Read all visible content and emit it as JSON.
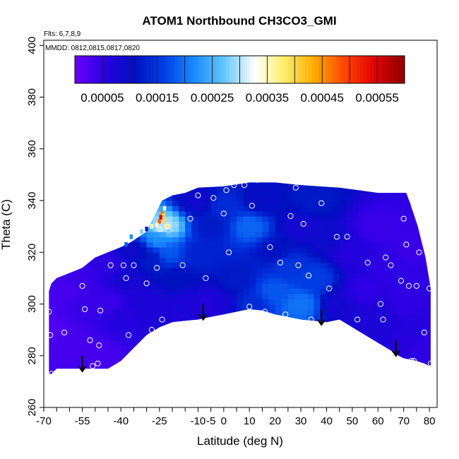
{
  "chart_data": {
    "type": "heatmap",
    "title": "ATOM1 Northbound CH3CO3_GMI",
    "subtitle_flights": "Flts: 6,7,8,9",
    "subtitle_dates": "MMDD: 0812,0815,0817,0820",
    "xlabel": "Latitude (deg N)",
    "ylabel": "Theta (C)",
    "xlim": [
      -70,
      83
    ],
    "ylim": [
      260,
      402
    ],
    "x_ticks": [
      -70,
      -65,
      -60,
      -55,
      -50,
      -45,
      -40,
      -35,
      -30,
      -25,
      -20,
      -15,
      -10,
      -5,
      0,
      5,
      10,
      15,
      20,
      25,
      30,
      35,
      40,
      45,
      50,
      55,
      60,
      65,
      70,
      75,
      80
    ],
    "x_tick_labels": [
      "-70",
      "",
      "",
      "-55",
      "",
      "",
      "-40",
      "",
      "",
      "-25",
      "",
      "",
      "-10",
      "-5",
      "0",
      "",
      "10",
      "",
      "20",
      "",
      "30",
      "",
      "40",
      "",
      "50",
      "",
      "60",
      "",
      "70",
      "",
      "80"
    ],
    "y_ticks": [
      260,
      280,
      300,
      320,
      340,
      360,
      380,
      400
    ],
    "y_tick_labels": [
      "260",
      "280",
      "300",
      "320",
      "340",
      "360",
      "380",
      "400"
    ],
    "colorbar": {
      "colors": [
        "#6a00ff",
        "#2800e0",
        "#0010c0",
        "#0040e6",
        "#1a8cff",
        "#66c8ff",
        "#ffffff",
        "#ffee66",
        "#ffaa00",
        "#ff4400",
        "#e00000",
        "#8b0000"
      ],
      "min": 0.0,
      "max": 0.0006,
      "ticks": [
        5e-05,
        0.00015,
        0.00025,
        0.00035,
        0.00045,
        0.00055
      ],
      "tick_labels": [
        "0.00005",
        "0.00015",
        "0.00025",
        "0.00035",
        "0.00045",
        "0.00055"
      ]
    },
    "outline_bottom": [
      [
        -68,
        273
      ],
      [
        -67,
        273
      ],
      [
        -65,
        275
      ],
      [
        -60,
        275
      ],
      [
        -55,
        275
      ],
      [
        -45,
        275
      ],
      [
        -40,
        278
      ],
      [
        -35,
        283
      ],
      [
        -30,
        288
      ],
      [
        -25,
        291
      ],
      [
        -20,
        293
      ],
      [
        -15,
        293.5
      ],
      [
        -10,
        294
      ],
      [
        -5,
        295
      ],
      [
        0,
        296
      ],
      [
        5,
        297
      ],
      [
        10,
        298
      ],
      [
        15,
        297.5
      ],
      [
        20,
        296
      ],
      [
        30,
        294
      ],
      [
        40,
        293
      ],
      [
        45,
        294
      ],
      [
        50,
        291
      ],
      [
        55,
        288
      ],
      [
        60,
        285
      ],
      [
        65,
        282
      ],
      [
        68,
        280
      ],
      [
        70,
        279
      ],
      [
        75,
        278
      ],
      [
        78,
        277
      ],
      [
        80,
        276
      ],
      [
        80.5,
        276
      ]
    ],
    "outline_top": [
      [
        80.5,
        276
      ],
      [
        80.5,
        306
      ],
      [
        79.5,
        312
      ],
      [
        78.5,
        318
      ],
      [
        77.5,
        322
      ],
      [
        76.5,
        326
      ],
      [
        75.5,
        330
      ],
      [
        74.5,
        333
      ],
      [
        73.5,
        336
      ],
      [
        72.5,
        339
      ],
      [
        71,
        343
      ],
      [
        60,
        343
      ],
      [
        45,
        345
      ],
      [
        30,
        346
      ],
      [
        20,
        347
      ],
      [
        10,
        347
      ],
      [
        0,
        345.5
      ],
      [
        -10,
        345
      ],
      [
        -15,
        343
      ],
      [
        -20,
        342
      ],
      [
        -24,
        340
      ],
      [
        -26,
        336
      ],
      [
        -28,
        332
      ],
      [
        -30,
        328
      ],
      [
        -33,
        326
      ],
      [
        -36,
        324
      ],
      [
        -40,
        322
      ],
      [
        -45,
        320
      ],
      [
        -50,
        318
      ],
      [
        -55,
        314
      ],
      [
        -60,
        312
      ],
      [
        -65,
        310
      ],
      [
        -67,
        308
      ],
      [
        -68,
        305
      ],
      [
        -68,
        273
      ]
    ],
    "field_nodes": [
      [
        -68,
        290,
        2e-05
      ],
      [
        -68,
        305,
        3e-05
      ],
      [
        -60,
        285,
        3e-05
      ],
      [
        -60,
        305,
        3e-05
      ],
      [
        -55,
        300,
        4e-05
      ],
      [
        -55,
        310,
        4e-05
      ],
      [
        -50,
        280,
        3e-05
      ],
      [
        -45,
        300,
        4e-05
      ],
      [
        -45,
        315,
        5e-05
      ],
      [
        -40,
        295,
        6e-05
      ],
      [
        -38,
        310,
        8e-05
      ],
      [
        -35,
        320,
        9e-05
      ],
      [
        -30,
        300,
        7e-05
      ],
      [
        -28,
        318,
        0.00012
      ],
      [
        -25,
        325,
        0.00022
      ],
      [
        -23,
        330,
        0.0003
      ],
      [
        -22,
        320,
        0.00018
      ],
      [
        -18,
        310,
        0.00011
      ],
      [
        -15,
        300,
        7e-05
      ],
      [
        -10,
        320,
        0.00013
      ],
      [
        -10,
        340,
        9e-05
      ],
      [
        -5,
        300,
        6e-05
      ],
      [
        -5,
        330,
        0.00012
      ],
      [
        0,
        300,
        8e-05
      ],
      [
        0,
        338,
        0.00014
      ],
      [
        5,
        310,
        0.00012
      ],
      [
        10,
        300,
        0.00014
      ],
      [
        10,
        330,
        0.00019
      ],
      [
        15,
        340,
        0.0001
      ],
      [
        20,
        305,
        0.00018
      ],
      [
        20,
        320,
        0.00011
      ],
      [
        25,
        315,
        0.00015
      ],
      [
        30,
        330,
        8e-05
      ],
      [
        30,
        300,
        0.0002
      ],
      [
        35,
        310,
        0.00016
      ],
      [
        35,
        340,
        0.00012
      ],
      [
        40,
        325,
        9e-05
      ],
      [
        45,
        300,
        8e-05
      ],
      [
        50,
        320,
        6e-05
      ],
      [
        55,
        305,
        5e-05
      ],
      [
        60,
        330,
        4e-05
      ],
      [
        62,
        295,
        7e-05
      ],
      [
        65,
        315,
        5e-05
      ],
      [
        70,
        300,
        5e-05
      ],
      [
        72,
        320,
        4e-05
      ],
      [
        75,
        290,
        6e-05
      ],
      [
        78,
        310,
        5e-05
      ],
      [
        80,
        285,
        5e-05
      ]
    ],
    "hot_cells": [
      [
        -23,
        337,
        0.00035
      ],
      [
        -24,
        335,
        0.00046
      ],
      [
        -23.5,
        334,
        0.0004
      ],
      [
        -24.5,
        333.5,
        0.00055
      ],
      [
        -25,
        332,
        0.00048
      ],
      [
        -23,
        332,
        0.0004
      ],
      [
        -26,
        330.5,
        0.00035
      ],
      [
        -25,
        329,
        0.0003
      ],
      [
        -28,
        330,
        0.00035
      ],
      [
        -30,
        329,
        0.00012
      ],
      [
        -32,
        328,
        0.00028
      ],
      [
        -36,
        326,
        0.00022
      ],
      [
        -38,
        323,
        0.00018
      ],
      [
        -22,
        330,
        0.00038
      ],
      [
        -21.5,
        328,
        0.00028
      ]
    ],
    "points": [
      [
        -68,
        297
      ],
      [
        -67.5,
        288
      ],
      [
        -67,
        273
      ],
      [
        -62,
        289
      ],
      [
        -55,
        307
      ],
      [
        -54,
        298
      ],
      [
        -52,
        286
      ],
      [
        -51,
        276
      ],
      [
        -49,
        277
      ],
      [
        -48.5,
        284
      ],
      [
        -48,
        297.5
      ],
      [
        -44,
        315
      ],
      [
        -39,
        315
      ],
      [
        -38,
        310
      ],
      [
        -37,
        288
      ],
      [
        -35,
        315
      ],
      [
        -30,
        308
      ],
      [
        -28,
        290
      ],
      [
        -26,
        314
      ],
      [
        -25,
        329
      ],
      [
        -24,
        294
      ],
      [
        -22,
        330
      ],
      [
        -16,
        315
      ],
      [
        -13,
        333
      ],
      [
        -10,
        342
      ],
      [
        -7,
        310
      ],
      [
        -4,
        341
      ],
      [
        0,
        335
      ],
      [
        1,
        344
      ],
      [
        2,
        320
      ],
      [
        4,
        346
      ],
      [
        8,
        346
      ],
      [
        10,
        299
      ],
      [
        11,
        338
      ],
      [
        13,
        348
      ],
      [
        16,
        297
      ],
      [
        18,
        322
      ],
      [
        22,
        316
      ],
      [
        24,
        296
      ],
      [
        26,
        334
      ],
      [
        28,
        345
      ],
      [
        29,
        315
      ],
      [
        31,
        331
      ],
      [
        33,
        311
      ],
      [
        34,
        294
      ],
      [
        38,
        339
      ],
      [
        41,
        306
      ],
      [
        44,
        326
      ],
      [
        48,
        326
      ],
      [
        52,
        294
      ],
      [
        56,
        316
      ],
      [
        61,
        300
      ],
      [
        62,
        294
      ],
      [
        63,
        318
      ],
      [
        65,
        315
      ],
      [
        69,
        309
      ],
      [
        70,
        333
      ],
      [
        71,
        323
      ],
      [
        72,
        307
      ],
      [
        73,
        278
      ],
      [
        74,
        278
      ],
      [
        75,
        307
      ],
      [
        76,
        320
      ],
      [
        78,
        289
      ],
      [
        80,
        306
      ],
      [
        80.5,
        277
      ]
    ],
    "arrows": [
      {
        "lat": -55,
        "theta_top": 280,
        "theta_bottom": 274
      },
      {
        "lat": -8,
        "theta_top": 300,
        "theta_bottom": 294
      },
      {
        "lat": 38,
        "theta_top": 298,
        "theta_bottom": 292
      },
      {
        "lat": 67,
        "theta_top": 286,
        "theta_bottom": 280
      }
    ]
  }
}
